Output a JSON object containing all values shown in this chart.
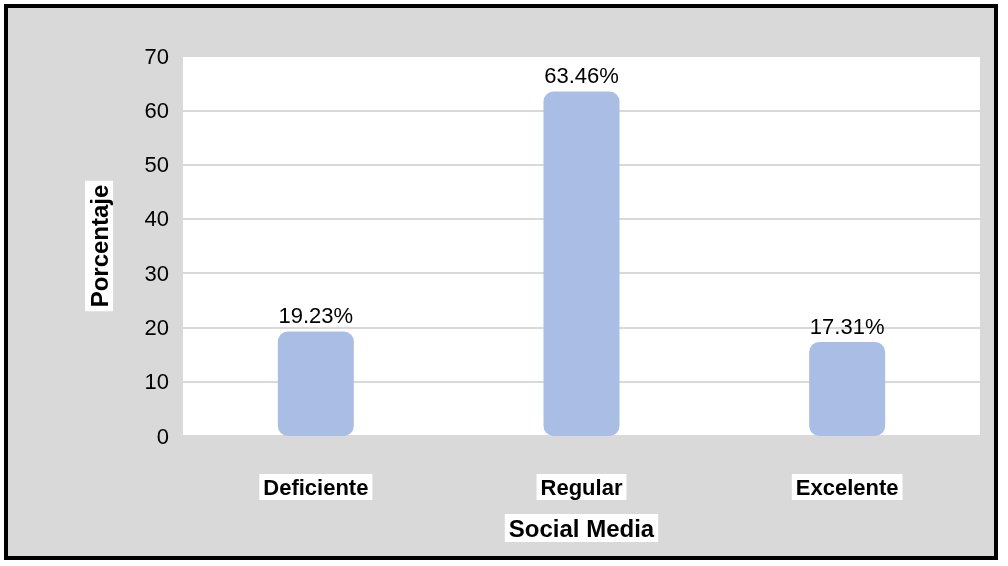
{
  "chart_data": {
    "type": "bar",
    "categories": [
      "Deficiente",
      "Regular",
      "Excelente"
    ],
    "values": [
      19.23,
      63.46,
      17.31
    ],
    "value_labels": [
      "19.23%",
      "63.46%",
      "17.31%"
    ],
    "color": "#aabde4",
    "xlabel": "Social Media",
    "ylabel": "Porcentaje",
    "ylim": [
      0,
      70
    ],
    "yticks": [
      0,
      10,
      20,
      30,
      40,
      50,
      60,
      70
    ],
    "grid": "y"
  }
}
